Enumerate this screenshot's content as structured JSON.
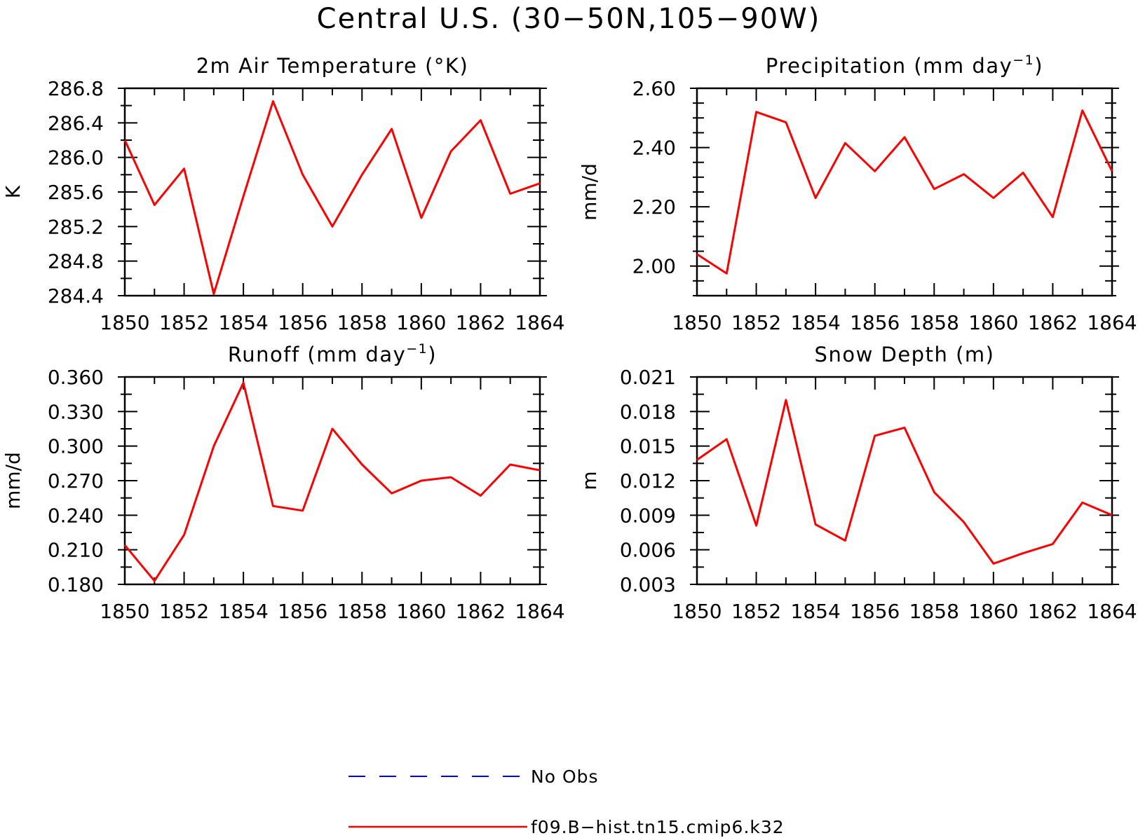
{
  "title": "Central U.S. (30−50N,105−90W)",
  "colors": {
    "model": "#ff0000",
    "obs": "#0000ff",
    "axis": "#000000"
  },
  "legend": [
    {
      "label": "No Obs",
      "color": "#0000ff",
      "style": "dashed"
    },
    {
      "label": "f09.B−hist.tn15.cmip6.k32",
      "color": "#ff0000",
      "style": "solid"
    }
  ],
  "chart_data": [
    {
      "type": "line",
      "title": "2m Air Temperature (°K)",
      "title_main": "2m Air Temperature (°K)",
      "title_sup": "",
      "title_end": "",
      "ylabel": "K",
      "xlabel": "",
      "xlim": [
        1850,
        1864
      ],
      "ylim": [
        284.4,
        286.8
      ],
      "xticks": [
        1850,
        1852,
        1854,
        1856,
        1858,
        1860,
        1862,
        1864
      ],
      "yticks": [
        "284.4",
        "284.8",
        "285.2",
        "285.6",
        "286.0",
        "286.4",
        "286.8"
      ],
      "yminor": 0.2,
      "series": [
        {
          "name": "f09.B−hist.tn15.cmip6.k32",
          "x": [
            1850,
            1851,
            1852,
            1853,
            1854,
            1855,
            1856,
            1857,
            1858,
            1859,
            1860,
            1861,
            1862,
            1863,
            1864
          ],
          "values": [
            286.2,
            285.45,
            285.87,
            284.42,
            285.55,
            286.65,
            285.8,
            285.2,
            285.8,
            286.33,
            285.3,
            286.07,
            286.43,
            285.58,
            285.7
          ]
        }
      ]
    },
    {
      "type": "line",
      "title": "Precipitation (mm day⁻¹)",
      "title_main": "Precipitation (mm day",
      "title_sup": "−1",
      "title_end": ")",
      "ylabel": "mm/d",
      "xlabel": "",
      "xlim": [
        1850,
        1864
      ],
      "ylim": [
        1.9,
        2.6
      ],
      "xticks": [
        1850,
        1852,
        1854,
        1856,
        1858,
        1860,
        1862,
        1864
      ],
      "yticks": [
        "2.00",
        "2.20",
        "2.40",
        "2.60"
      ],
      "yminor": 0.05,
      "series": [
        {
          "name": "f09.B−hist.tn15.cmip6.k32",
          "x": [
            1850,
            1851,
            1852,
            1853,
            1854,
            1855,
            1856,
            1857,
            1858,
            1859,
            1860,
            1861,
            1862,
            1863,
            1864
          ],
          "values": [
            2.04,
            1.975,
            2.52,
            2.485,
            2.23,
            2.415,
            2.32,
            2.435,
            2.26,
            2.31,
            2.23,
            2.315,
            2.165,
            2.525,
            2.32
          ]
        }
      ]
    },
    {
      "type": "line",
      "title": "Runoff (mm day⁻¹)",
      "title_main": "Runoff (mm day",
      "title_sup": "−1",
      "title_end": ")",
      "ylabel": "mm/d",
      "xlabel": "",
      "xlim": [
        1850,
        1864
      ],
      "ylim": [
        0.18,
        0.36
      ],
      "xticks": [
        1850,
        1852,
        1854,
        1856,
        1858,
        1860,
        1862,
        1864
      ],
      "yticks": [
        "0.180",
        "0.210",
        "0.240",
        "0.270",
        "0.300",
        "0.330",
        "0.360"
      ],
      "yminor": 0.015,
      "series": [
        {
          "name": "f09.B−hist.tn15.cmip6.k32",
          "x": [
            1850,
            1851,
            1852,
            1853,
            1854,
            1855,
            1856,
            1857,
            1858,
            1859,
            1860,
            1861,
            1862,
            1863,
            1864
          ],
          "values": [
            0.214,
            0.183,
            0.223,
            0.3,
            0.355,
            0.248,
            0.244,
            0.315,
            0.284,
            0.259,
            0.27,
            0.273,
            0.257,
            0.284,
            0.279
          ]
        }
      ]
    },
    {
      "type": "line",
      "title": "Snow Depth (m)",
      "title_main": "Snow Depth (m)",
      "title_sup": "",
      "title_end": "",
      "ylabel": "m",
      "xlabel": "",
      "xlim": [
        1850,
        1864
      ],
      "ylim": [
        0.003,
        0.021
      ],
      "xticks": [
        1850,
        1852,
        1854,
        1856,
        1858,
        1860,
        1862,
        1864
      ],
      "yticks": [
        "0.003",
        "0.006",
        "0.009",
        "0.012",
        "0.015",
        "0.018",
        "0.021"
      ],
      "yminor": 0.0015,
      "series": [
        {
          "name": "f09.B−hist.tn15.cmip6.k32",
          "x": [
            1850,
            1851,
            1852,
            1853,
            1854,
            1855,
            1856,
            1857,
            1858,
            1859,
            1860,
            1861,
            1862,
            1863,
            1864
          ],
          "values": [
            0.0138,
            0.0156,
            0.0081,
            0.019,
            0.0082,
            0.0068,
            0.0159,
            0.0166,
            0.011,
            0.0084,
            0.0048,
            0.0057,
            0.0065,
            0.0101,
            0.009
          ]
        }
      ]
    }
  ]
}
